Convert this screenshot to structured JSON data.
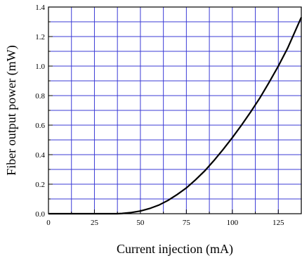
{
  "chart_data": {
    "type": "line",
    "title": "",
    "xlabel": "Current injection (mA)",
    "ylabel": "Fiber output power (mW)",
    "xlim": [
      0,
      137.5
    ],
    "ylim": [
      0,
      1.4
    ],
    "x_ticks": [
      0,
      25,
      50,
      75,
      100,
      125
    ],
    "x_tick_labels": [
      "0",
      "25",
      "50",
      "75",
      "100",
      "125"
    ],
    "y_ticks": [
      0,
      0.2,
      0.4,
      0.6,
      0.8,
      1.0,
      1.2,
      1.4
    ],
    "y_tick_labels": [
      "0.0",
      "0.2",
      "0.4",
      "0.6",
      "0.8",
      "1.0",
      "1.2",
      "1.4"
    ],
    "grid": true,
    "grid_color": "#3b3bd6",
    "line_color": "#000000",
    "series": [
      {
        "x": [
          0,
          25,
          37.5,
          40,
          45,
          50,
          55,
          60,
          65,
          70,
          75,
          80,
          85,
          90,
          95,
          100,
          105,
          110,
          115,
          120,
          125,
          130,
          137.5
        ],
        "y": [
          0,
          0,
          0,
          0.002,
          0.008,
          0.018,
          0.035,
          0.058,
          0.09,
          0.13,
          0.175,
          0.23,
          0.29,
          0.36,
          0.435,
          0.515,
          0.6,
          0.69,
          0.785,
          0.89,
          1.0,
          1.12,
          1.33
        ]
      }
    ]
  }
}
